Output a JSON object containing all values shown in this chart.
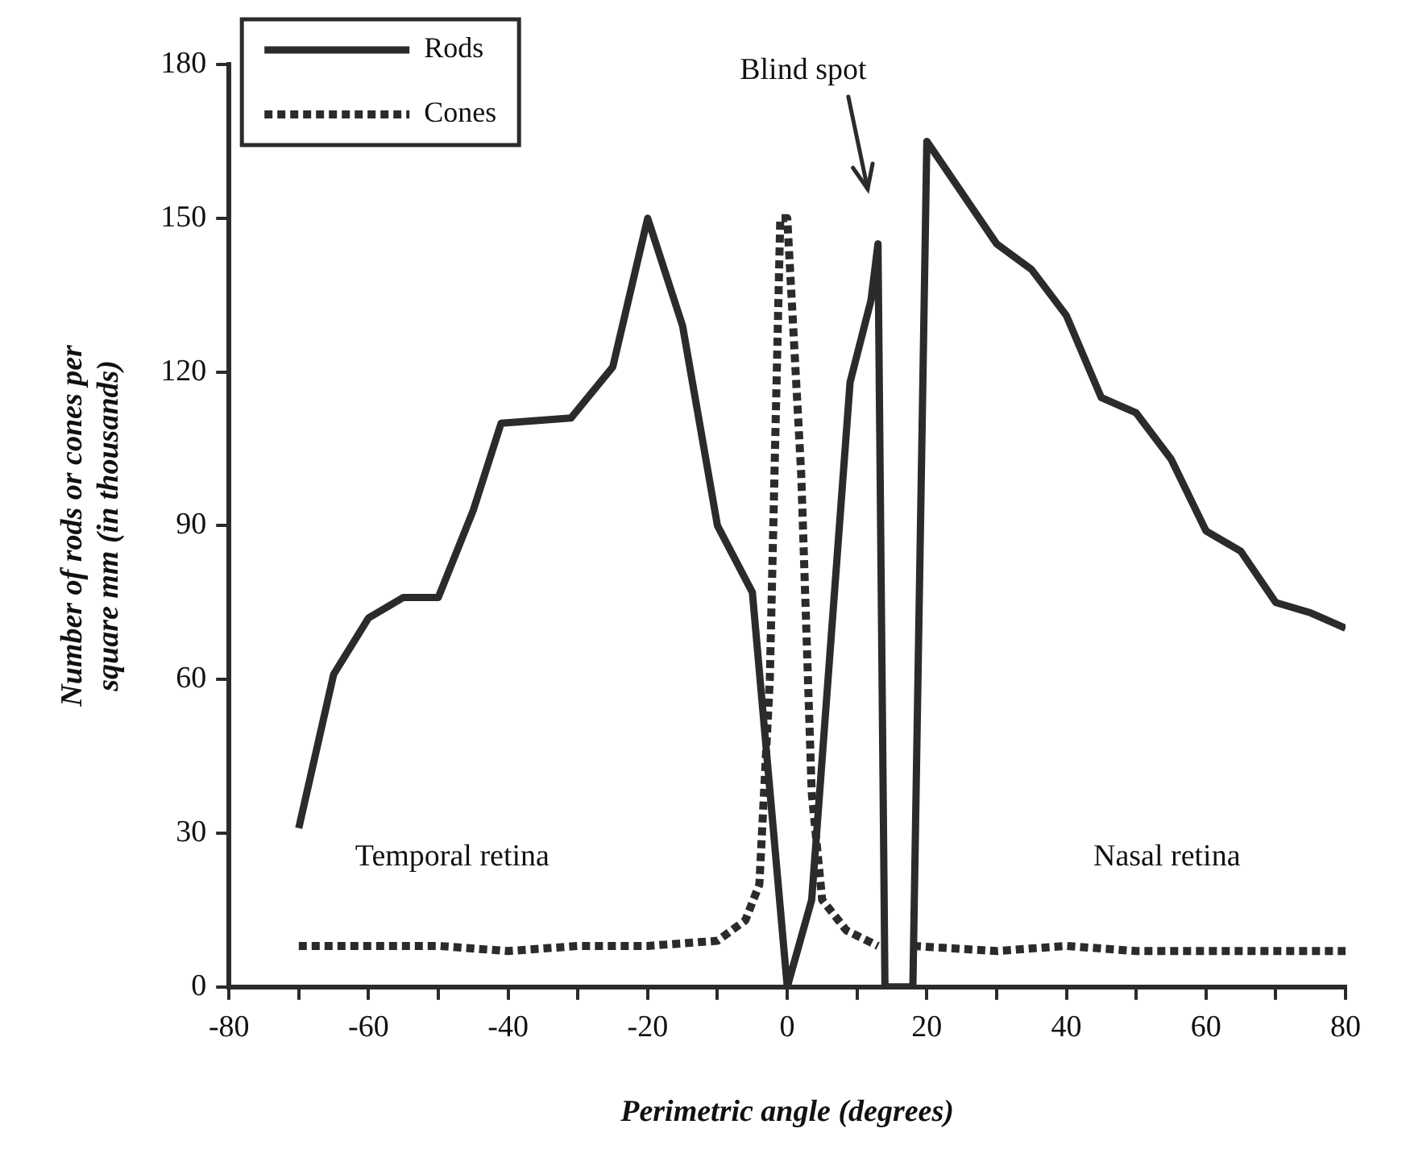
{
  "chart_data": {
    "type": "line",
    "xlabel": "Perimetric angle (degrees)",
    "ylabel": "Number of rods or cones per square mm (in thousands)",
    "xlim": [
      -80,
      80
    ],
    "xticks": [
      -80,
      {
        "value": -70,
        "label": null
      },
      -60,
      {
        "value": -50,
        "label": null
      },
      -40,
      {
        "value": -30,
        "label": null
      },
      -20,
      {
        "value": -10,
        "label": null
      },
      0,
      {
        "value": 10,
        "label": null
      },
      20,
      {
        "value": 30,
        "label": null
      },
      40,
      {
        "value": 50,
        "label": null
      },
      60,
      {
        "value": 70,
        "label": null
      },
      80
    ],
    "ylim": [
      0,
      180
    ],
    "yticks": [
      0,
      30,
      60,
      90,
      120,
      150,
      180
    ],
    "grid": false,
    "legend": "top left",
    "marker": "none",
    "series": [
      {
        "name": "Rods",
        "color": "#2b2b2b",
        "line_style": "solid",
        "x": [
          -70,
          -65,
          -60,
          -55,
          -50,
          -45,
          -41,
          -31,
          -25,
          -20,
          -15,
          -10,
          -5,
          0,
          3.5,
          9,
          12,
          13,
          14,
          18,
          20,
          30,
          35,
          40,
          45,
          50,
          55,
          60,
          65,
          70,
          75,
          80
        ],
        "values": [
          31,
          61,
          72,
          76,
          76,
          93,
          110,
          111,
          121,
          150,
          129,
          90,
          77,
          0,
          17,
          118,
          134,
          145,
          0,
          0,
          165,
          145,
          140,
          131,
          115,
          112,
          103,
          89,
          85,
          75,
          73,
          70
        ]
      },
      {
        "name": "Cones",
        "color": "#2b2b2b",
        "line_style": "dotted",
        "x": [
          -70,
          -60,
          -50,
          -40,
          -30,
          -20,
          -10,
          -6,
          -4,
          -2.5,
          -1,
          0,
          2,
          3.5,
          5,
          8.5,
          13,
          15,
          18,
          30,
          40,
          50,
          60,
          70,
          80
        ],
        "values": [
          8,
          8,
          8,
          7,
          8,
          8,
          9,
          13,
          20,
          60,
          150,
          150,
          100,
          38,
          17,
          11,
          8,
          null,
          8,
          7,
          8,
          7,
          7,
          7,
          7
        ]
      }
    ],
    "annotations": [
      "Blind spot",
      "Temporal retina",
      "Nasal retina"
    ]
  }
}
